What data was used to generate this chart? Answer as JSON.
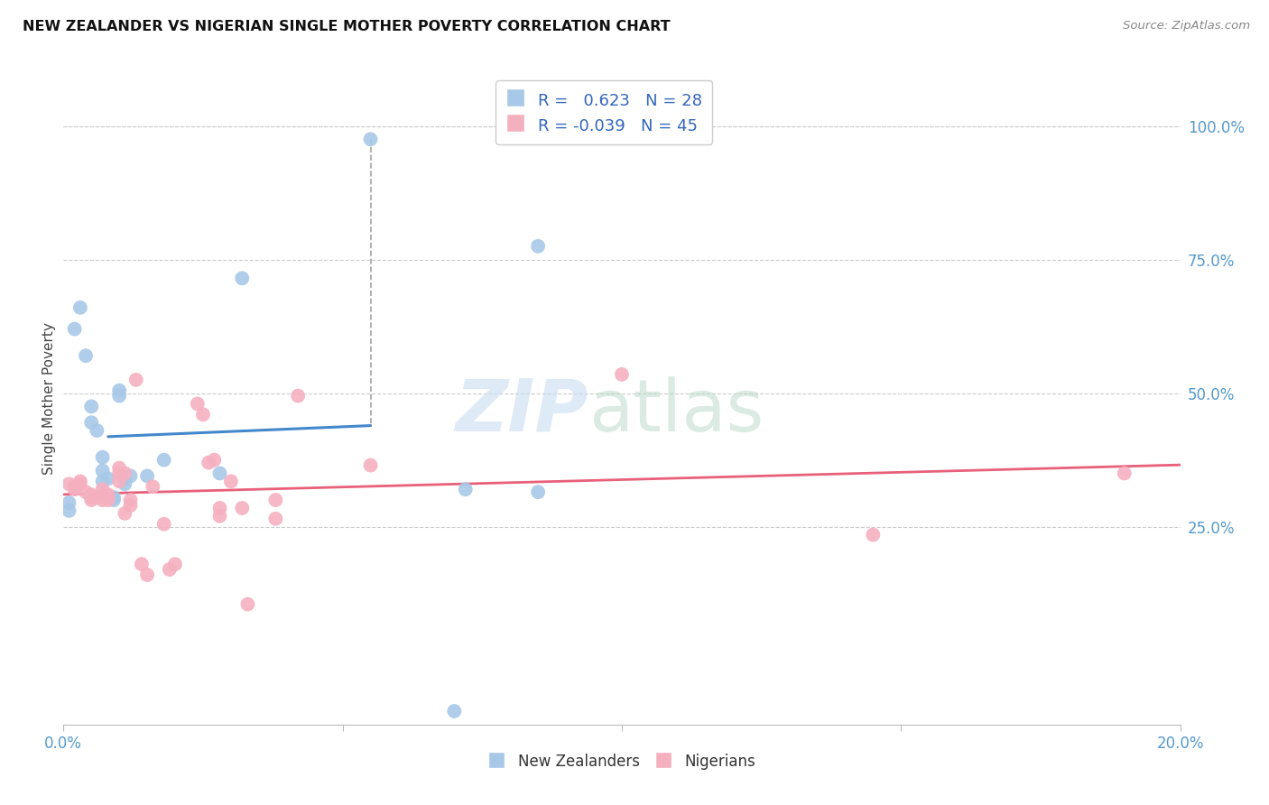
{
  "title": "NEW ZEALANDER VS NIGERIAN SINGLE MOTHER POVERTY CORRELATION CHART",
  "source": "Source: ZipAtlas.com",
  "ylabel": "Single Mother Poverty",
  "right_yticks": [
    "100.0%",
    "75.0%",
    "50.0%",
    "25.0%"
  ],
  "right_ytick_vals": [
    1.0,
    0.75,
    0.5,
    0.25
  ],
  "xlim": [
    0.0,
    0.2
  ],
  "ylim": [
    -0.12,
    1.1
  ],
  "nz_R": 0.623,
  "nz_N": 28,
  "ng_R": -0.039,
  "ng_N": 45,
  "nz_color": "#a8c8e8",
  "ng_color": "#f5b0c0",
  "nz_line_color": "#4488cc",
  "ng_line_color": "#e8607a",
  "legend_color": "#3366bb",
  "nz_points": [
    [
      0.001,
      0.295
    ],
    [
      0.001,
      0.28
    ],
    [
      0.002,
      0.62
    ],
    [
      0.003,
      0.66
    ],
    [
      0.004,
      0.57
    ],
    [
      0.005,
      0.475
    ],
    [
      0.005,
      0.445
    ],
    [
      0.006,
      0.43
    ],
    [
      0.007,
      0.38
    ],
    [
      0.007,
      0.355
    ],
    [
      0.007,
      0.335
    ],
    [
      0.008,
      0.34
    ],
    [
      0.009,
      0.305
    ],
    [
      0.009,
      0.3
    ],
    [
      0.01,
      0.505
    ],
    [
      0.01,
      0.495
    ],
    [
      0.011,
      0.34
    ],
    [
      0.011,
      0.33
    ],
    [
      0.012,
      0.345
    ],
    [
      0.015,
      0.345
    ],
    [
      0.018,
      0.375
    ],
    [
      0.028,
      0.35
    ],
    [
      0.032,
      0.715
    ],
    [
      0.055,
      0.975
    ],
    [
      0.07,
      -0.095
    ],
    [
      0.072,
      0.32
    ],
    [
      0.085,
      0.315
    ],
    [
      0.085,
      0.775
    ]
  ],
  "ng_points": [
    [
      0.001,
      0.33
    ],
    [
      0.002,
      0.325
    ],
    [
      0.002,
      0.32
    ],
    [
      0.003,
      0.335
    ],
    [
      0.003,
      0.33
    ],
    [
      0.004,
      0.315
    ],
    [
      0.005,
      0.31
    ],
    [
      0.005,
      0.305
    ],
    [
      0.005,
      0.3
    ],
    [
      0.006,
      0.305
    ],
    [
      0.007,
      0.32
    ],
    [
      0.007,
      0.31
    ],
    [
      0.007,
      0.3
    ],
    [
      0.008,
      0.31
    ],
    [
      0.008,
      0.3
    ],
    [
      0.01,
      0.36
    ],
    [
      0.01,
      0.35
    ],
    [
      0.01,
      0.335
    ],
    [
      0.011,
      0.35
    ],
    [
      0.011,
      0.275
    ],
    [
      0.012,
      0.3
    ],
    [
      0.012,
      0.29
    ],
    [
      0.013,
      0.525
    ],
    [
      0.014,
      0.18
    ],
    [
      0.015,
      0.16
    ],
    [
      0.016,
      0.325
    ],
    [
      0.018,
      0.255
    ],
    [
      0.019,
      0.17
    ],
    [
      0.02,
      0.18
    ],
    [
      0.024,
      0.48
    ],
    [
      0.025,
      0.46
    ],
    [
      0.026,
      0.37
    ],
    [
      0.027,
      0.375
    ],
    [
      0.028,
      0.285
    ],
    [
      0.028,
      0.27
    ],
    [
      0.03,
      0.335
    ],
    [
      0.032,
      0.285
    ],
    [
      0.033,
      0.105
    ],
    [
      0.038,
      0.265
    ],
    [
      0.038,
      0.3
    ],
    [
      0.042,
      0.495
    ],
    [
      0.055,
      0.365
    ],
    [
      0.1,
      0.535
    ],
    [
      0.145,
      0.235
    ],
    [
      0.19,
      0.35
    ]
  ],
  "nz_trendline_x": [
    0.0078,
    0.055
  ],
  "ng_trendline_x": [
    0.0,
    0.2
  ]
}
